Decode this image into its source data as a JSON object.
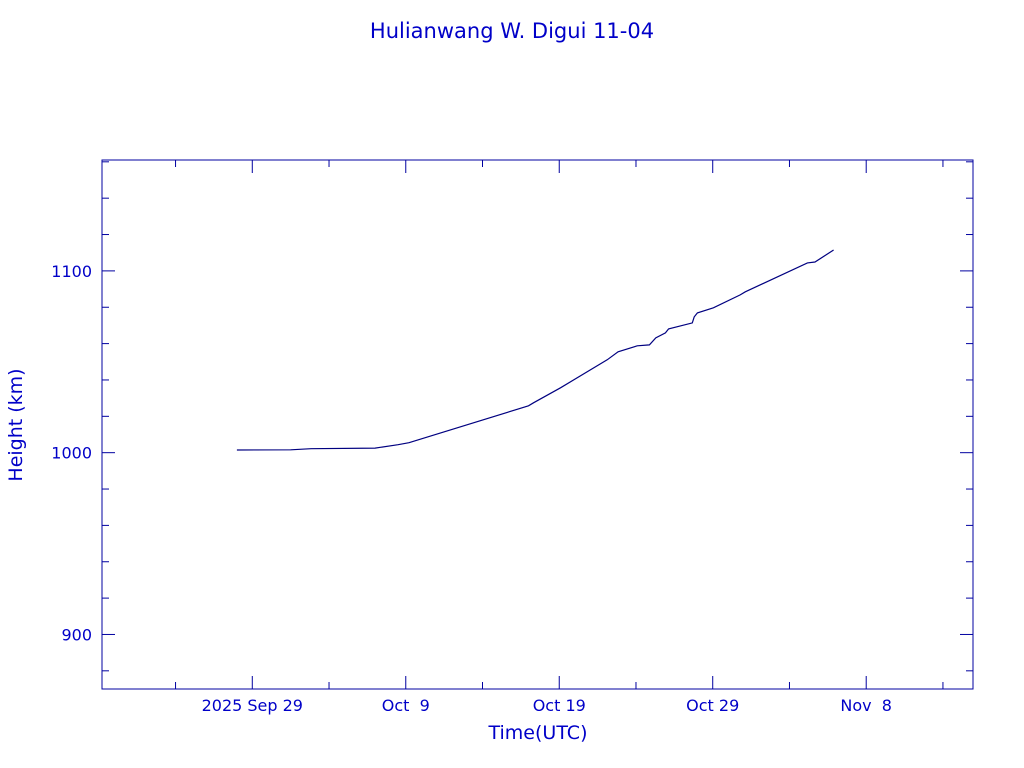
{
  "chart_data": {
    "type": "line",
    "title": "Hulianwang W. Digui 11-04",
    "xlabel": "Time(UTC)",
    "ylabel": "Height (km)",
    "xlim": [
      "2025-09-19T05:00",
      "2025-11-14T23:00"
    ],
    "ylim": [
      870,
      1161
    ],
    "x_ticks": [
      {
        "date": "2025-09-29",
        "label": "2025 Sep 29"
      },
      {
        "date": "2025-10-09",
        "label": "Oct  9"
      },
      {
        "date": "2025-10-19",
        "label": "Oct 19"
      },
      {
        "date": "2025-10-29",
        "label": "Oct 29"
      },
      {
        "date": "2025-11-08",
        "label": "Nov  8"
      }
    ],
    "y_ticks": [
      900,
      1000,
      1100
    ],
    "y_minor_step": 20,
    "x_minor_step_days": 5,
    "grid": false,
    "colors": {
      "text": "#0000c8",
      "axes": "#0000a0",
      "line": "#000080"
    },
    "series": [
      {
        "points": [
          [
            "2025-09-28T00:00",
            1001.5
          ],
          [
            "2025-10-01T12:00",
            1001.6
          ],
          [
            "2025-10-02T20:00",
            1002.2
          ],
          [
            "2025-10-07T00:00",
            1002.5
          ],
          [
            "2025-10-08T12:00",
            1004.4
          ],
          [
            "2025-10-09T05:00",
            1005.5
          ],
          [
            "2025-10-17T00:00",
            1025.8
          ],
          [
            "2025-10-17T08:00",
            1027.5
          ],
          [
            "2025-10-19T02:00",
            1035.7
          ],
          [
            "2025-10-22T03:00",
            1051.1
          ],
          [
            "2025-10-22T20:00",
            1055.5
          ],
          [
            "2025-10-24T02:00",
            1058.8
          ],
          [
            "2025-10-24T21:00",
            1059.3
          ],
          [
            "2025-10-25T07:00",
            1063.2
          ],
          [
            "2025-10-25T22:00",
            1065.9
          ],
          [
            "2025-10-26T03:00",
            1068.1
          ],
          [
            "2025-10-27T16:00",
            1071.4
          ],
          [
            "2025-10-27T19:00",
            1074.7
          ],
          [
            "2025-10-28T00:00",
            1076.9
          ],
          [
            "2025-10-29T01:00",
            1079.7
          ],
          [
            "2025-10-30T19:00",
            1086.8
          ],
          [
            "2025-10-31T03:00",
            1088.5
          ],
          [
            "2025-11-04T04:00",
            1104.4
          ],
          [
            "2025-11-04T16:00",
            1104.9
          ],
          [
            "2025-11-05T21:00",
            1111.5
          ]
        ]
      }
    ]
  }
}
